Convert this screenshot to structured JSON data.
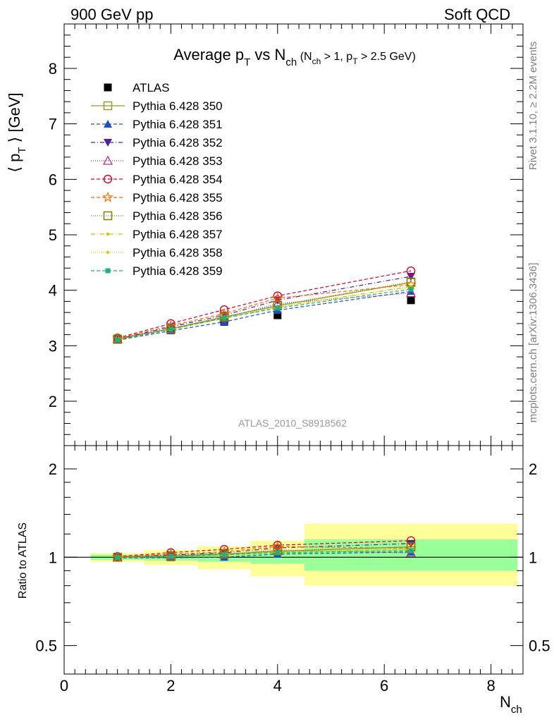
{
  "header": {
    "left": "900 GeV pp",
    "right": "Soft QCD"
  },
  "side_labels": {
    "rivet": "Rivet 3.1.10, ≥ 2.2M events",
    "mcplots": "mcplots.cern.ch [arXiv:1306.3436]"
  },
  "watermark": "ATLAS_2010_S8918562",
  "colors": {
    "atlas": "#000000",
    "s350": "#999933",
    "s351": "#1f4fbf",
    "s352": "#4b1fa8",
    "s353": "#b0307f",
    "s354": "#e0002a",
    "s355": "#ff6a00",
    "s356": "#808000",
    "s357": "#d4c400",
    "s358": "#c8d400",
    "s359": "#1fb37a",
    "band_inner": "#99ff99",
    "band_outer": "#ffff99"
  },
  "chart_data": [
    {
      "type": "line",
      "title": "Average p_T vs N_ch (N_ch > 1, p_T > 2.5 GeV)",
      "title_parts": {
        "main": "Average p",
        "sub1": "T",
        "mid": " vs N",
        "sub2": "ch",
        "cond_a": " (N",
        "cond_sub1": "ch",
        "cond_b": " > 1, p",
        "cond_sub2": "T",
        "cond_c": " > 2.5 GeV)"
      },
      "ylabel": "⟨ p_T ⟩ [GeV]",
      "ylabel_parts": {
        "a": "⟨ p",
        "sub": "T",
        "b": " ⟩ [GeV]"
      },
      "xlabel": "N_ch",
      "xlabel_parts": {
        "main": "N",
        "sub": "ch"
      },
      "xlim": [
        0,
        8.6
      ],
      "ylim": [
        1.2,
        8.8
      ],
      "x_ticks": [
        "0",
        "2",
        "4",
        "6",
        "8"
      ],
      "y_ticks": [
        "2",
        "3",
        "4",
        "5",
        "6",
        "7",
        "8"
      ],
      "x": [
        1,
        2,
        3,
        4,
        6.5
      ],
      "legend_position": "top-left",
      "series": [
        {
          "name": "ATLAS",
          "values": [
            3.12,
            3.28,
            3.43,
            3.55,
            3.82
          ]
        },
        {
          "name": "Pythia 6.428 350",
          "values": [
            3.12,
            3.31,
            3.52,
            3.72,
            4.14
          ]
        },
        {
          "name": "Pythia 6.428 351",
          "values": [
            3.1,
            3.27,
            3.43,
            3.64,
            3.98
          ]
        },
        {
          "name": "Pythia 6.428 352",
          "values": [
            3.12,
            3.34,
            3.55,
            3.82,
            4.25
          ]
        },
        {
          "name": "Pythia 6.428 353",
          "values": [
            3.12,
            3.31,
            3.5,
            3.76,
            3.95
          ]
        },
        {
          "name": "Pythia 6.428 354",
          "values": [
            3.14,
            3.4,
            3.65,
            3.9,
            4.35
          ]
        },
        {
          "name": "Pythia 6.428 355",
          "values": [
            3.13,
            3.36,
            3.58,
            3.86,
            4.1
          ]
        },
        {
          "name": "Pythia 6.428 356",
          "values": [
            3.12,
            3.3,
            3.52,
            3.73,
            4.15
          ]
        },
        {
          "name": "Pythia 6.428 357",
          "values": [
            3.11,
            3.3,
            3.49,
            3.7,
            4.07
          ]
        },
        {
          "name": "Pythia 6.428 358",
          "values": [
            3.11,
            3.29,
            3.5,
            3.7,
            4.06
          ]
        },
        {
          "name": "Pythia 6.428 359",
          "values": [
            3.11,
            3.3,
            3.5,
            3.68,
            4.02
          ]
        }
      ]
    },
    {
      "type": "line",
      "ylabel": "Ratio to ATLAS",
      "xlabel": "N_ch",
      "xlim": [
        0,
        8.6
      ],
      "ylim": [
        0.4,
        2.4
      ],
      "y_scale": "log",
      "y_ticks": [
        "0.5",
        "1",
        "2"
      ],
      "x": [
        1,
        2,
        3,
        4,
        6.5
      ],
      "bins": [
        [
          0.5,
          1.5
        ],
        [
          1.5,
          2.5
        ],
        [
          2.5,
          3.5
        ],
        [
          3.5,
          4.5
        ],
        [
          4.5,
          8.5
        ]
      ],
      "stat_band": [
        [
          0.98,
          1.02
        ],
        [
          0.975,
          1.025
        ],
        [
          0.965,
          1.035
        ],
        [
          0.95,
          1.05
        ],
        [
          0.9,
          1.15
        ]
      ],
      "total_band": [
        [
          0.965,
          1.035
        ],
        [
          0.94,
          1.06
        ],
        [
          0.91,
          1.09
        ],
        [
          0.86,
          1.14
        ],
        [
          0.8,
          1.3
        ]
      ],
      "series": [
        {
          "name": "Pythia 6.428 350",
          "values": [
            1.0,
            1.01,
            1.026,
            1.048,
            1.084
          ]
        },
        {
          "name": "Pythia 6.428 351",
          "values": [
            0.994,
            0.997,
            1.0,
            1.025,
            1.042
          ]
        },
        {
          "name": "Pythia 6.428 352",
          "values": [
            1.0,
            1.018,
            1.035,
            1.076,
            1.113
          ]
        },
        {
          "name": "Pythia 6.428 353",
          "values": [
            1.0,
            1.009,
            1.02,
            1.059,
            1.034
          ]
        },
        {
          "name": "Pythia 6.428 354",
          "values": [
            1.006,
            1.037,
            1.064,
            1.099,
            1.139
          ]
        },
        {
          "name": "Pythia 6.428 355",
          "values": [
            1.003,
            1.024,
            1.044,
            1.087,
            1.073
          ]
        },
        {
          "name": "Pythia 6.428 356",
          "values": [
            1.0,
            1.006,
            1.026,
            1.051,
            1.086
          ]
        },
        {
          "name": "Pythia 6.428 357",
          "values": [
            0.997,
            1.006,
            1.017,
            1.042,
            1.066
          ]
        },
        {
          "name": "Pythia 6.428 358",
          "values": [
            0.997,
            1.003,
            1.02,
            1.042,
            1.063
          ]
        },
        {
          "name": "Pythia 6.428 359",
          "values": [
            0.997,
            1.006,
            1.02,
            1.037,
            1.052
          ]
        }
      ]
    }
  ]
}
